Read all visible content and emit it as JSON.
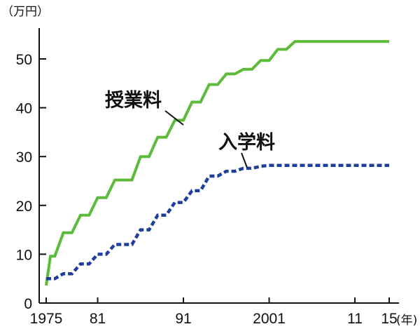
{
  "chart_data": {
    "type": "line",
    "y_unit": "（万円）",
    "x_unit": "(年)",
    "ylim": [
      0,
      55
    ],
    "xlim": [
      1975,
      2015
    ],
    "y_ticks": [
      0,
      10,
      20,
      30,
      40,
      50
    ],
    "x_ticks": [
      {
        "value": 1975,
        "label": "1975"
      },
      {
        "value": 1981,
        "label": "81"
      },
      {
        "value": 1991,
        "label": "91"
      },
      {
        "value": 2001,
        "label": "2001"
      },
      {
        "value": 2011,
        "label": "11"
      },
      {
        "value": 2015,
        "label": "15"
      }
    ],
    "grid": false,
    "series": [
      {
        "name": "授業料",
        "color": "#5dbb3a",
        "style": "solid",
        "x": [
          1975,
          1975.5,
          1976,
          1977,
          1978,
          1979,
          1980,
          1981,
          1982,
          1983,
          1984,
          1985,
          1986,
          1987,
          1988,
          1989,
          1990,
          1991,
          1992,
          1993,
          1994,
          1995,
          1996,
          1997,
          1998,
          1999,
          2000,
          2001,
          2002,
          2003,
          2004,
          2005,
          2006,
          2015
        ],
        "y": [
          3.6,
          9.6,
          9.6,
          14.4,
          14.4,
          18.0,
          18.0,
          21.6,
          21.6,
          25.2,
          25.2,
          25.2,
          30.0,
          30.0,
          33.96,
          33.96,
          37.44,
          37.44,
          41.16,
          41.16,
          44.76,
          44.76,
          46.92,
          46.92,
          47.88,
          47.88,
          49.68,
          49.68,
          51.96,
          51.96,
          53.58,
          53.58,
          53.58,
          53.58
        ]
      },
      {
        "name": "入学料",
        "color": "#1f3f9c",
        "style": "dashed",
        "x": [
          1975,
          1976,
          1977,
          1978,
          1979,
          1980,
          1981,
          1982,
          1983,
          1984,
          1985,
          1986,
          1987,
          1988,
          1989,
          1990,
          1991,
          1992,
          1993,
          1994,
          1995,
          1996,
          1997,
          1998,
          1999,
          2000,
          2001,
          2002,
          2015
        ],
        "y": [
          5.0,
          5.0,
          6.0,
          6.0,
          8.0,
          8.0,
          10.0,
          10.0,
          12.0,
          12.0,
          12.0,
          15.0,
          15.0,
          18.0,
          18.0,
          20.6,
          20.6,
          23.0,
          23.0,
          26.0,
          26.0,
          27.0,
          27.0,
          27.6,
          27.6,
          28.0,
          28.2,
          28.2,
          28.2
        ]
      }
    ]
  }
}
